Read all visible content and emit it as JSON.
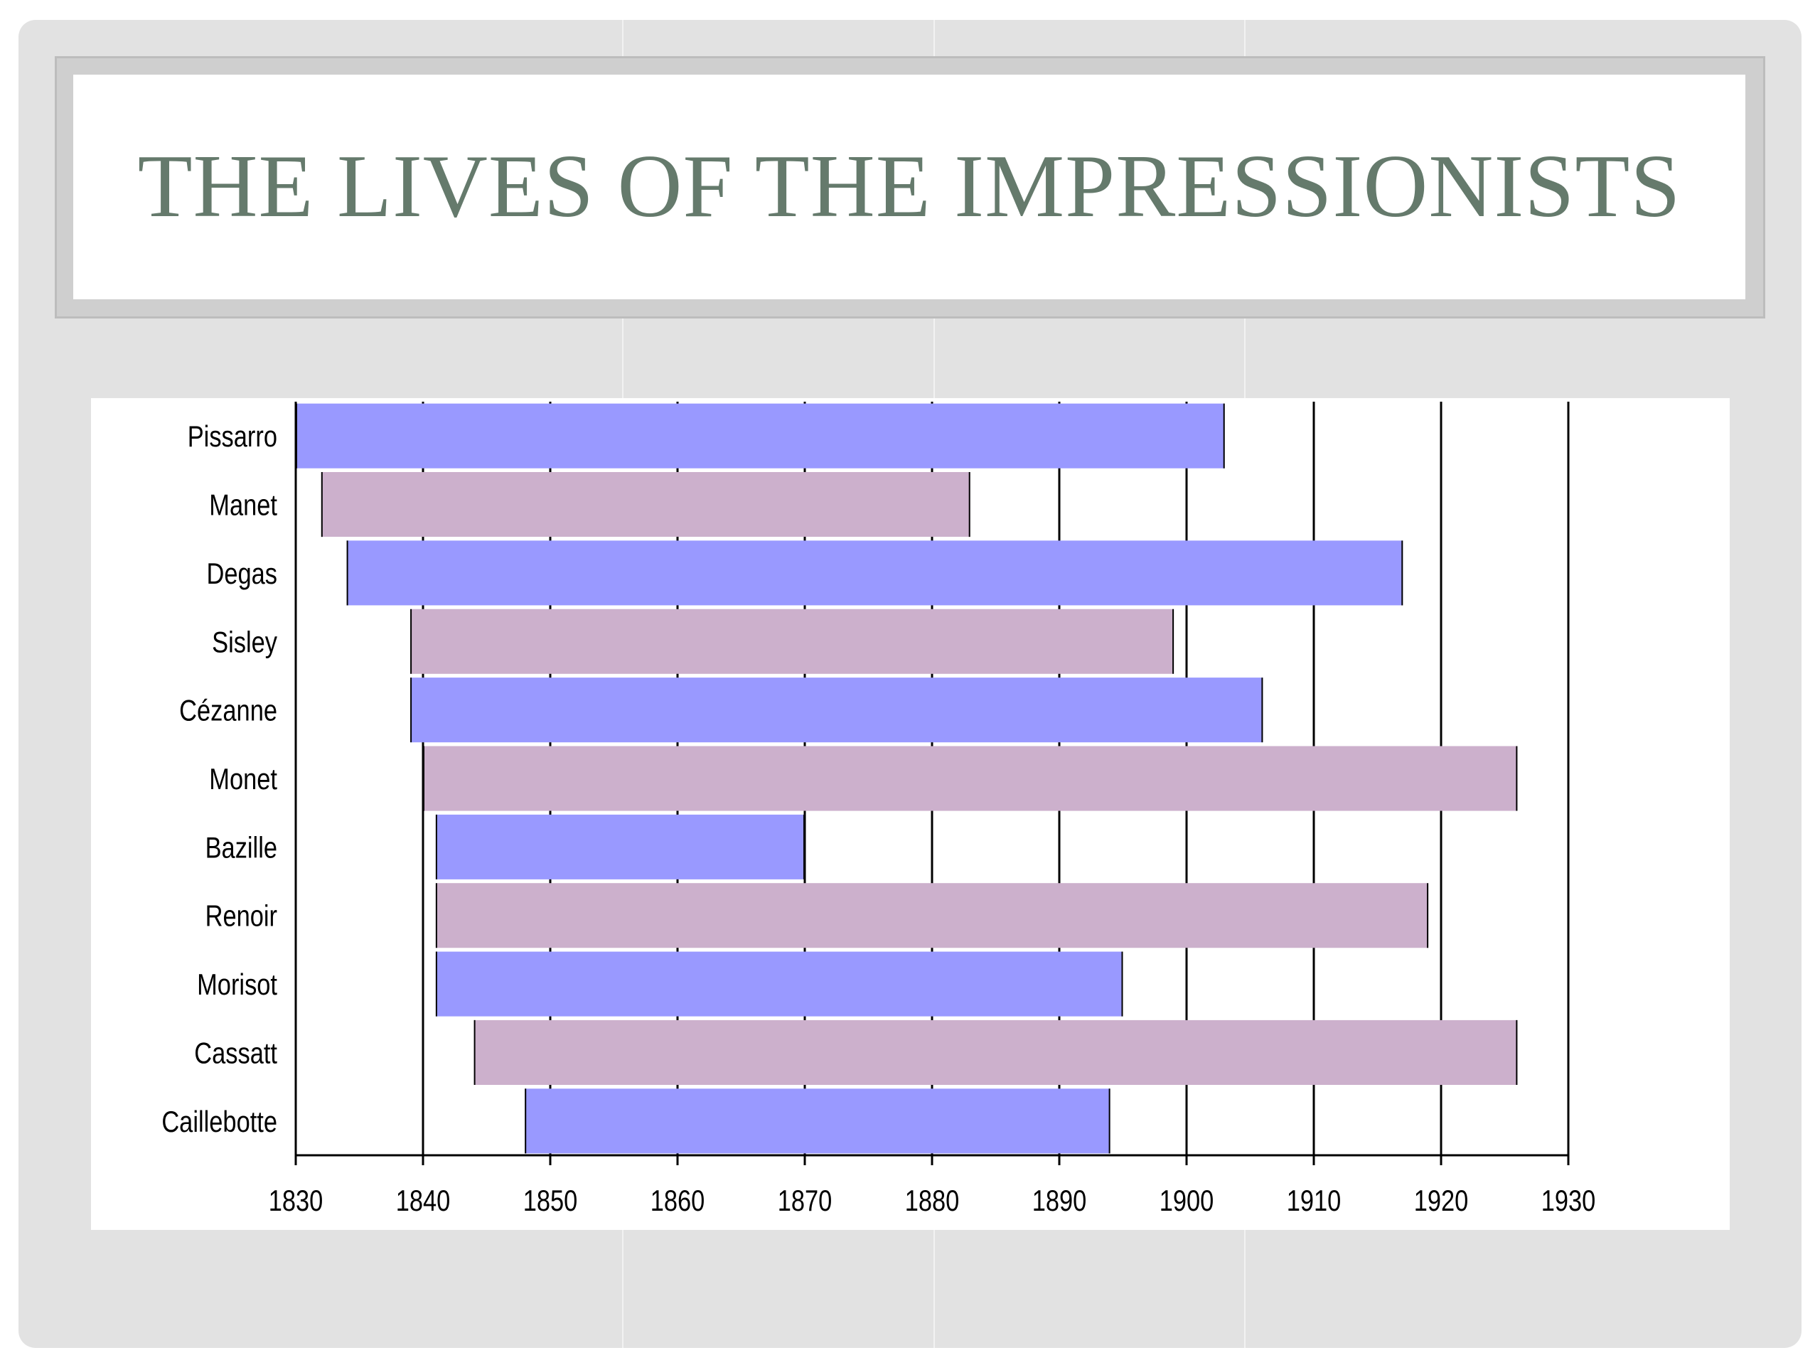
{
  "slide": {
    "title": "THE LIVES OF THE IMPRESSIONISTS"
  },
  "colors": {
    "series_a": "#9999ff",
    "series_b": "#ccb0cc",
    "title": "#657a6c"
  },
  "chart_data": {
    "type": "bar",
    "orientation": "horizontal",
    "subtype": "floating-range",
    "title": "",
    "xlabel": "",
    "ylabel": "",
    "xlim": [
      1830,
      1930
    ],
    "xticks": [
      1830,
      1840,
      1850,
      1860,
      1870,
      1880,
      1890,
      1900,
      1910,
      1920,
      1930
    ],
    "grid": "vertical",
    "categories": [
      "Pissarro",
      "Manet",
      "Degas",
      "Sisley",
      "Cézanne",
      "Monet",
      "Bazille",
      "Renoir",
      "Morisot",
      "Cassatt",
      "Caillebotte"
    ],
    "series": [
      {
        "values": [
          [
            1830,
            1903
          ],
          [
            1832,
            1883
          ],
          [
            1834,
            1917
          ],
          [
            1839,
            1899
          ],
          [
            1839,
            1906
          ],
          [
            1840,
            1926
          ],
          [
            1841,
            1870
          ],
          [
            1841,
            1919
          ],
          [
            1841,
            1895
          ],
          [
            1844,
            1926
          ],
          [
            1848,
            1894
          ]
        ]
      }
    ],
    "bar_colors": [
      "series_a",
      "series_b",
      "series_a",
      "series_b",
      "series_a",
      "series_b",
      "series_a",
      "series_b",
      "series_a",
      "series_b",
      "series_a"
    ]
  }
}
